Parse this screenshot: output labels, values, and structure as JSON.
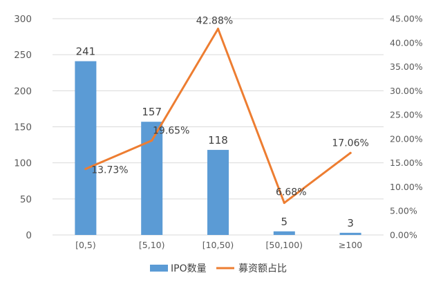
{
  "colors": {
    "bar": "#5B9BD5",
    "line": "#ED7D31",
    "grid": "#D9D9D9",
    "text": "#595959"
  },
  "chart_data": {
    "type": "bar",
    "categories": [
      "[0,5)",
      "[5,10)",
      "[10,50)",
      "[50,100)",
      "≥100"
    ],
    "series": [
      {
        "name": "IPO数量",
        "type": "bar",
        "axis": "left",
        "values": [
          241,
          157,
          118,
          5,
          3
        ],
        "labels": [
          "241",
          "157",
          "118",
          "5",
          "3"
        ]
      },
      {
        "name": "募资额占比",
        "type": "line",
        "axis": "right",
        "values": [
          13.73,
          19.65,
          42.88,
          6.68,
          17.06
        ],
        "labels": [
          "13.73%",
          "19.65%",
          "42.88%",
          "6.68%",
          "17.06%"
        ]
      }
    ],
    "left_axis": {
      "min": 0,
      "max": 300,
      "ticks": [
        "0",
        "50",
        "100",
        "150",
        "200",
        "250",
        "300"
      ]
    },
    "right_axis": {
      "min": 0,
      "max": 45,
      "ticks": [
        "0.00%",
        "5.00%",
        "10.00%",
        "15.00%",
        "20.00%",
        "25.00%",
        "30.00%",
        "35.00%",
        "40.00%",
        "45.00%"
      ]
    },
    "grid": true,
    "legend": {
      "position": "bottom",
      "entries": [
        "IPO数量",
        "募资额占比"
      ]
    }
  }
}
